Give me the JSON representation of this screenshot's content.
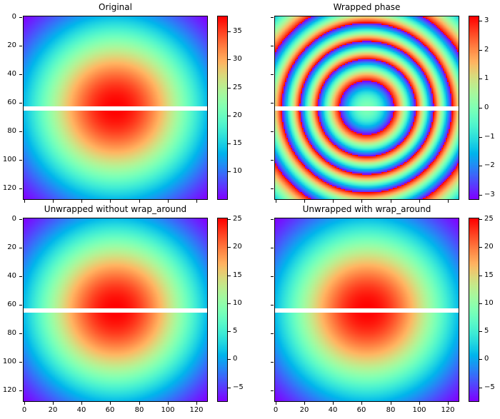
{
  "figure": {
    "background": "#ffffff",
    "description": "matplotlib 2x2 phase-unwrapping demo figure with rainbow colormap and a white masked horizontal band across each panel"
  },
  "colormap": {
    "name": "rainbow",
    "low": "#8000ff",
    "mid": "#80ffb4",
    "high": "#ff0000"
  },
  "spine_color": "#000000",
  "masked_band": {
    "rows": [
      63,
      64,
      65
    ],
    "color": "#ffffff"
  },
  "field": {
    "grid_size": 128,
    "formula": "12*pi*exp(-(x^2+y^2))",
    "x_range": [
      -1,
      1
    ],
    "y_range": [
      -1,
      1
    ]
  },
  "axis_ticks": {
    "values": [
      0,
      20,
      40,
      60,
      80,
      100,
      120
    ],
    "labels": [
      "0",
      "20",
      "40",
      "60",
      "80",
      "100",
      "120"
    ]
  },
  "chart_data": [
    {
      "type": "heatmap",
      "title": "Original",
      "grid": {
        "row": 0,
        "col": 0
      },
      "transform": "none",
      "offset": 0,
      "vmin": 5.093,
      "vmax": 37.699,
      "colormap": "rainbow",
      "show_xticklabels": false,
      "show_yticklabels": true,
      "colorbar_ticks": [
        {
          "value": 35,
          "label": "35"
        },
        {
          "value": 30,
          "label": "30"
        },
        {
          "value": 25,
          "label": "25"
        },
        {
          "value": 20,
          "label": "20"
        },
        {
          "value": 15,
          "label": "15"
        },
        {
          "value": 10,
          "label": "10"
        }
      ]
    },
    {
      "type": "heatmap",
      "title": "Wrapped phase",
      "grid": {
        "row": 0,
        "col": 1
      },
      "transform": "wrap",
      "offset": 0,
      "vmin": -3.14159,
      "vmax": 3.14159,
      "colormap": "rainbow",
      "show_xticklabels": false,
      "show_yticklabels": false,
      "colorbar_ticks": [
        {
          "value": 3,
          "label": "3"
        },
        {
          "value": 2,
          "label": "2"
        },
        {
          "value": 1,
          "label": "1"
        },
        {
          "value": 0,
          "label": "0"
        },
        {
          "value": -1,
          "label": "−1"
        },
        {
          "value": -2,
          "label": "−2"
        },
        {
          "value": -3,
          "label": "−3"
        }
      ]
    },
    {
      "type": "heatmap",
      "title": "Unwrapped without wrap_around",
      "grid": {
        "row": 1,
        "col": 0
      },
      "transform": "offset",
      "offset": -12.566,
      "vmin": -7.473,
      "vmax": 25.133,
      "colormap": "rainbow",
      "show_xticklabels": true,
      "show_yticklabels": true,
      "colorbar_ticks": [
        {
          "value": 25,
          "label": "25"
        },
        {
          "value": 20,
          "label": "20"
        },
        {
          "value": 15,
          "label": "15"
        },
        {
          "value": 10,
          "label": "10"
        },
        {
          "value": 5,
          "label": "5"
        },
        {
          "value": 0,
          "label": "0"
        },
        {
          "value": -5,
          "label": "−5"
        }
      ]
    },
    {
      "type": "heatmap",
      "title": "Unwrapped with wrap_around",
      "grid": {
        "row": 1,
        "col": 1
      },
      "transform": "offset",
      "offset": -12.566,
      "vmin": -7.473,
      "vmax": 25.133,
      "colormap": "rainbow",
      "show_xticklabels": true,
      "show_yticklabels": false,
      "colorbar_ticks": [
        {
          "value": 25,
          "label": "25"
        },
        {
          "value": 20,
          "label": "20"
        },
        {
          "value": 15,
          "label": "15"
        },
        {
          "value": 10,
          "label": "10"
        },
        {
          "value": 5,
          "label": "5"
        },
        {
          "value": 0,
          "label": "0"
        },
        {
          "value": -5,
          "label": "−5"
        }
      ]
    }
  ]
}
